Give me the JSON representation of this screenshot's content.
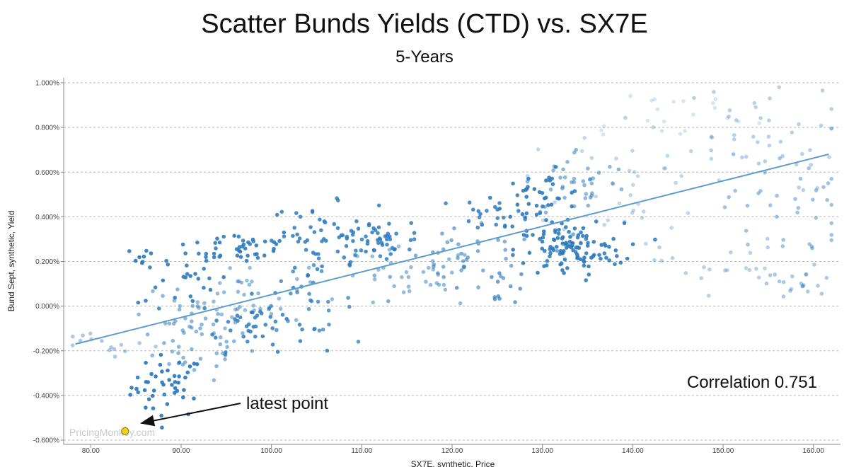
{
  "chart_data": {
    "type": "scatter",
    "title": "Scatter Bunds Yields (CTD) vs. SX7E",
    "subtitle": "5-Years",
    "xlabel": "SX7E, synthetic, Price",
    "ylabel": "Bund Sept, synthetic, Yield",
    "xlim": [
      77,
      163
    ],
    "ylim": [
      -0.006,
      0.01
    ],
    "x_ticks": [
      80,
      90,
      100,
      110,
      120,
      130,
      140,
      150,
      160
    ],
    "x_tick_labels": [
      "80.00",
      "90.00",
      "100.00",
      "110.00",
      "120.00",
      "130.00",
      "140.00",
      "150.00",
      "160.00"
    ],
    "y_ticks": [
      -0.006,
      -0.004,
      -0.002,
      0.0,
      0.002,
      0.004,
      0.006,
      0.008,
      0.01
    ],
    "y_tick_labels": [
      "-0.600%",
      "-0.400%",
      "-0.200%",
      "0.000%",
      "0.200%",
      "0.400%",
      "0.600%",
      "0.800%",
      "1.000%"
    ],
    "grid": true,
    "colors": {
      "point": "#2f7bbd",
      "trend": "#5a9ccc",
      "latest": "#f2d21b",
      "latest_stroke": "#8a7a00"
    },
    "trendline": {
      "x": [
        78.3,
        161.7
      ],
      "y": [
        -0.0017,
        0.0068
      ]
    },
    "correlation_label": "Correlation 0.751",
    "latest_point": {
      "x": 83.8,
      "y": -0.0056,
      "label": "latest point"
    },
    "watermark": "PricingMonkey.com",
    "clusters": [
      {
        "xc": 88.5,
        "yc": -0.0036,
        "sx": 2.0,
        "sy": 0.0007,
        "n": 45,
        "o": 0.95
      },
      {
        "xc": 91.5,
        "yc": -0.0015,
        "sx": 3.0,
        "sy": 0.0009,
        "n": 55,
        "o": 0.55
      },
      {
        "xc": 90.0,
        "yc": 0.0015,
        "sx": 2.5,
        "sy": 0.0009,
        "n": 30,
        "o": 0.9
      },
      {
        "xc": 97.0,
        "yc": 0.0027,
        "sx": 3.0,
        "sy": 0.0004,
        "n": 40,
        "o": 0.9
      },
      {
        "xc": 98.0,
        "yc": -0.0008,
        "sx": 3.0,
        "sy": 0.0006,
        "n": 45,
        "o": 0.85
      },
      {
        "xc": 97.0,
        "yc": 0.0005,
        "sx": 3.5,
        "sy": 0.0007,
        "n": 40,
        "o": 0.5
      },
      {
        "xc": 105.0,
        "yc": 0.0032,
        "sx": 2.5,
        "sy": 0.0007,
        "n": 40,
        "o": 0.85
      },
      {
        "xc": 104.0,
        "yc": 0.0002,
        "sx": 2.5,
        "sy": 0.0007,
        "n": 25,
        "o": 0.75
      },
      {
        "xc": 110.0,
        "yc": 0.0025,
        "sx": 3.0,
        "sy": 0.0006,
        "n": 35,
        "o": 0.85
      },
      {
        "xc": 113.0,
        "yc": 0.0032,
        "sx": 2.5,
        "sy": 0.0004,
        "n": 25,
        "o": 0.85
      },
      {
        "xc": 115.0,
        "yc": 0.0012,
        "sx": 4.0,
        "sy": 0.0007,
        "n": 35,
        "o": 0.5
      },
      {
        "xc": 122.0,
        "yc": 0.002,
        "sx": 4.0,
        "sy": 0.0007,
        "n": 40,
        "o": 0.6
      },
      {
        "xc": 125.0,
        "yc": 0.0042,
        "sx": 2.0,
        "sy": 0.0004,
        "n": 20,
        "o": 0.85
      },
      {
        "xc": 125.0,
        "yc": 0.0009,
        "sx": 2.0,
        "sy": 0.0004,
        "n": 12,
        "o": 0.7
      },
      {
        "xc": 130.0,
        "yc": 0.0048,
        "sx": 2.5,
        "sy": 0.0006,
        "n": 45,
        "o": 0.9
      },
      {
        "xc": 133.0,
        "yc": 0.0025,
        "sx": 3.0,
        "sy": 0.0006,
        "n": 110,
        "o": 0.9
      },
      {
        "xc": 134.0,
        "yc": 0.0055,
        "sx": 3.0,
        "sy": 0.0008,
        "n": 40,
        "o": 0.55
      },
      {
        "xc": 140.0,
        "yc": 0.0055,
        "sx": 4.0,
        "sy": 0.0014,
        "n": 40,
        "o": 0.3
      },
      {
        "xc": 143.0,
        "yc": 0.0085,
        "sx": 6.0,
        "sy": 0.0007,
        "n": 25,
        "o": 0.2
      },
      {
        "xc": 153.0,
        "yc": 0.0075,
        "sx": 5.0,
        "sy": 0.0012,
        "n": 40,
        "o": 0.35
      },
      {
        "xc": 157.0,
        "yc": 0.0045,
        "sx": 3.5,
        "sy": 0.0012,
        "n": 35,
        "o": 0.45
      },
      {
        "xc": 150.0,
        "yc": 0.0018,
        "sx": 3.5,
        "sy": 0.0006,
        "n": 20,
        "o": 0.35
      },
      {
        "xc": 158.0,
        "yc": 0.001,
        "sx": 2.5,
        "sy": 0.0004,
        "n": 20,
        "o": 0.4
      },
      {
        "xc": 82.0,
        "yc": -0.0018,
        "sx": 3.0,
        "sy": 0.0003,
        "n": 15,
        "o": 0.4
      },
      {
        "xc": 86.0,
        "yc": 0.002,
        "sx": 0.8,
        "sy": 0.0002,
        "n": 6,
        "o": 0.95
      }
    ]
  }
}
